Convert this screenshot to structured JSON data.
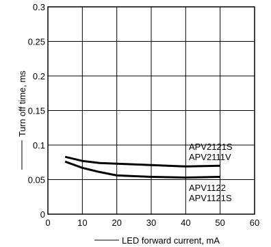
{
  "chart_data": {
    "type": "line",
    "xlabel": "LED forward current, mA",
    "ylabel": "Turn off time, ms",
    "xlim": [
      0,
      60
    ],
    "ylim": [
      0,
      0.3
    ],
    "xticks": [
      "0",
      "10",
      "20",
      "30",
      "40",
      "50",
      "60"
    ],
    "yticks": [
      "0",
      "0.05",
      "0.1",
      "0.15",
      "0.2",
      "0.25",
      "0.3"
    ],
    "grid": true,
    "series": [
      {
        "labels": [
          "APV2121S",
          "APV2111V"
        ],
        "x": [
          5,
          10,
          15,
          20,
          30,
          40,
          50
        ],
        "y": [
          0.083,
          0.077,
          0.074,
          0.073,
          0.071,
          0.069,
          0.07
        ]
      },
      {
        "labels": [
          "APV1122",
          "APV1121S"
        ],
        "x": [
          5,
          10,
          15,
          20,
          30,
          40,
          50
        ],
        "y": [
          0.076,
          0.067,
          0.061,
          0.056,
          0.054,
          0.053,
          0.054
        ]
      }
    ]
  }
}
